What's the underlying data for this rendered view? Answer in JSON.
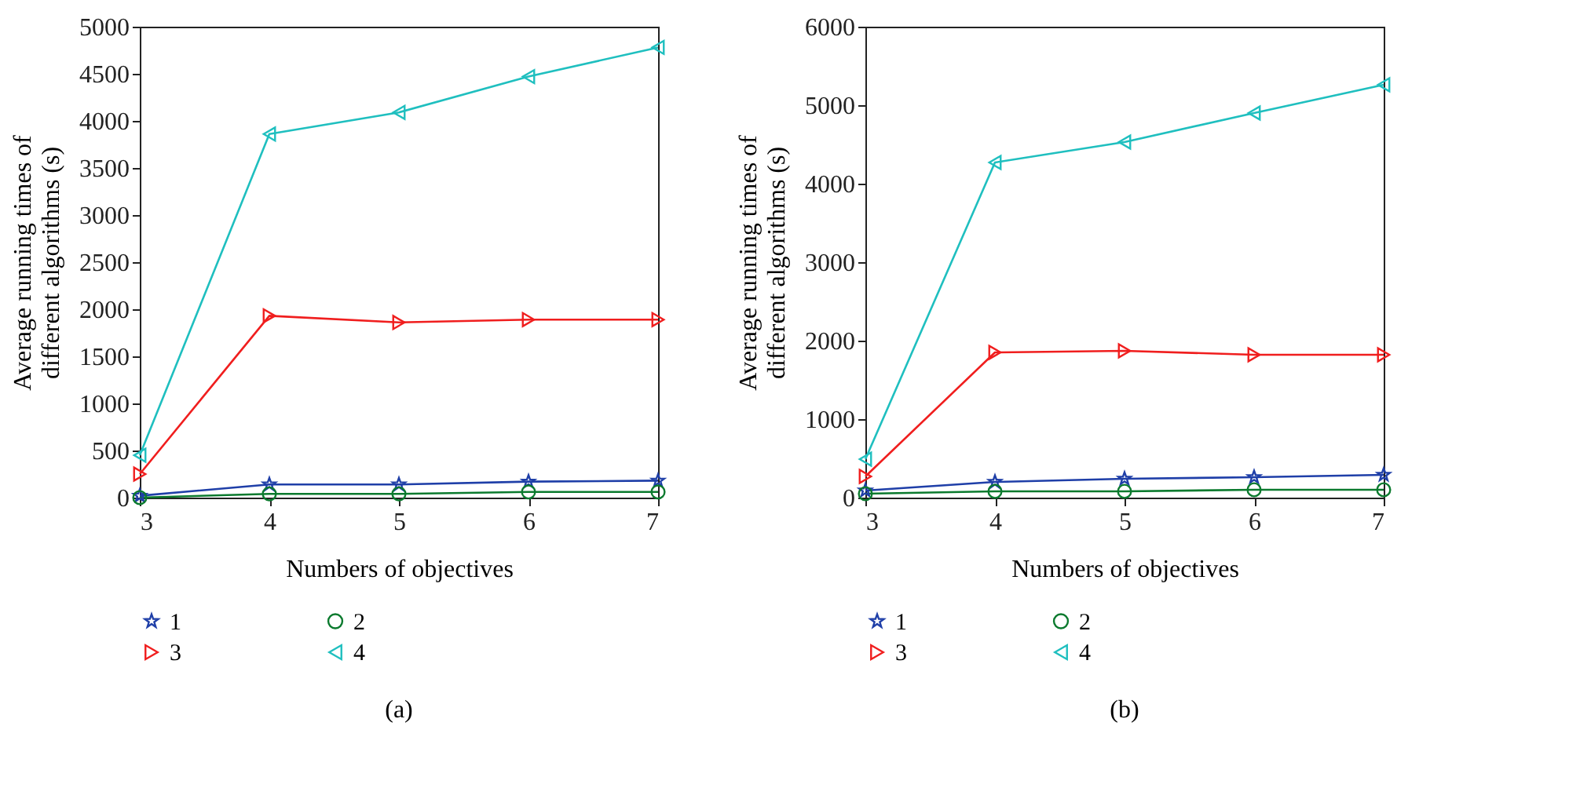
{
  "chart_data": [
    {
      "type": "line",
      "title": "(a)",
      "xlabel": "Numbers of objectives",
      "ylabel": "Average running times of different algorithms (s)",
      "x": [
        3,
        4,
        5,
        6,
        7
      ],
      "xlim": [
        3,
        7
      ],
      "xticks": [
        3,
        4,
        5,
        6,
        7
      ],
      "ylim": [
        0,
        5000
      ],
      "yticks": [
        0,
        500,
        1000,
        1500,
        2000,
        2500,
        3000,
        3500,
        4000,
        4500,
        5000
      ],
      "grid": false,
      "legend": "bottom",
      "series": [
        {
          "name": "1",
          "color": "#1f3fa8",
          "marker": "star",
          "values": [
            20,
            140,
            140,
            170,
            180
          ]
        },
        {
          "name": "2",
          "color": "#0b7a2e",
          "marker": "circle",
          "values": [
            0,
            40,
            40,
            60,
            60
          ]
        },
        {
          "name": "3",
          "color": "#f01e1e",
          "marker": "triangle",
          "values": [
            250,
            1930,
            1860,
            1890,
            1890
          ]
        },
        {
          "name": "4",
          "color": "#1fbfbf",
          "marker": "triangle",
          "values": [
            450,
            3860,
            4090,
            4470,
            4780
          ]
        }
      ]
    },
    {
      "type": "line",
      "title": "(b)",
      "xlabel": "Numbers of objectives",
      "ylabel": "Average running times of different algorithms (s)",
      "x": [
        3,
        4,
        5,
        6,
        7
      ],
      "xlim": [
        3,
        7
      ],
      "xticks": [
        3,
        4,
        5,
        6,
        7
      ],
      "ylim": [
        0,
        6000
      ],
      "yticks": [
        0,
        1000,
        2000,
        3000,
        4000,
        5000,
        6000
      ],
      "grid": false,
      "legend": "bottom",
      "series": [
        {
          "name": "1",
          "color": "#1f3fa8",
          "marker": "star",
          "values": [
            90,
            200,
            240,
            260,
            290
          ]
        },
        {
          "name": "2",
          "color": "#0b7a2e",
          "marker": "circle",
          "values": [
            50,
            80,
            80,
            100,
            100
          ]
        },
        {
          "name": "3",
          "color": "#f01e1e",
          "marker": "triangle",
          "values": [
            270,
            1850,
            1870,
            1820,
            1820
          ]
        },
        {
          "name": "4",
          "color": "#1fbfbf",
          "marker": "triangle",
          "values": [
            490,
            4270,
            4530,
            4900,
            5260
          ]
        }
      ]
    }
  ]
}
